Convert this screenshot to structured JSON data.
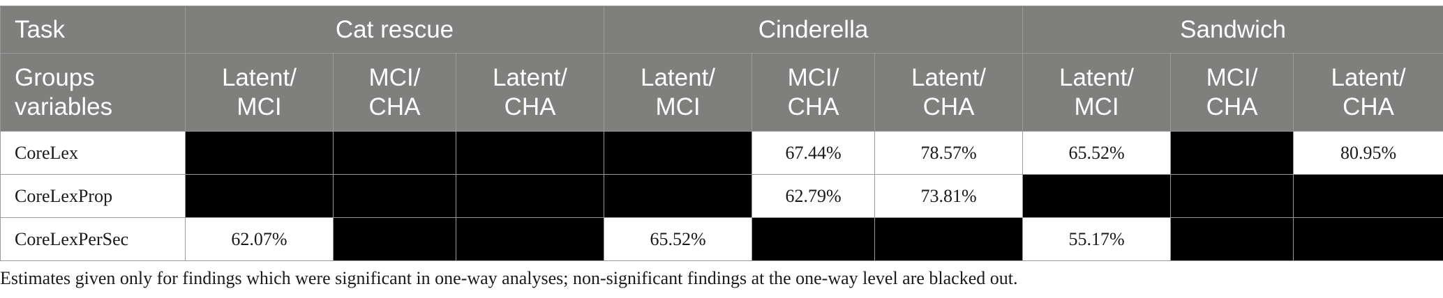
{
  "header": {
    "task_label": "Task",
    "tasks": [
      "Cat rescue",
      "Cinderella",
      "Sandwich"
    ],
    "groups_label_line1": "Groups",
    "groups_label_line2": "variables",
    "comparisons": [
      {
        "line1": "Latent/",
        "line2": "MCI"
      },
      {
        "line1": "MCI/",
        "line2": "CHA"
      },
      {
        "line1": "Latent/",
        "line2": "CHA"
      }
    ]
  },
  "rows": [
    {
      "label": "CoreLex",
      "cells": [
        null,
        null,
        null,
        null,
        "67.44%",
        "78.57%",
        "65.52%",
        null,
        "80.95%"
      ]
    },
    {
      "label": "CoreLexProp",
      "cells": [
        null,
        null,
        null,
        null,
        "62.79%",
        "73.81%",
        null,
        null,
        null
      ]
    },
    {
      "label": "CoreLexPerSec",
      "cells": [
        "62.07%",
        null,
        null,
        "65.52%",
        null,
        null,
        "55.17%",
        null,
        null
      ]
    }
  ],
  "footnote": "Estimates given only for findings which were significant in one-way analyses; non-significant findings at the one-way level are blacked out.",
  "colors": {
    "header_bg": "#7f7f7e",
    "header_text": "#ffffff",
    "blacked_out": "#000000",
    "border": "#9a9a9a"
  }
}
